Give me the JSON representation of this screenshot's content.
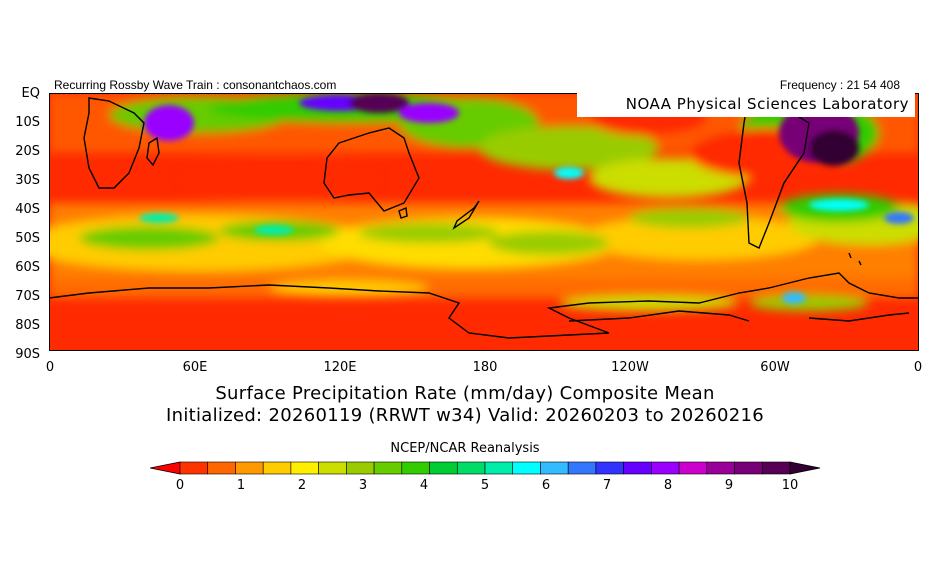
{
  "header": {
    "left_text": "Recurring Rossby Wave Train : consonantchaos.com",
    "right_text": "Frequency : 21 54 408",
    "org_label": "NOAA Physical Sciences Laboratory"
  },
  "map": {
    "projection": "cylindrical",
    "domain": "Southern Hemisphere, EQ to 90S, 0 to 360",
    "lat_labels": [
      "EQ",
      "10S",
      "20S",
      "30S",
      "40S",
      "50S",
      "60S",
      "70S",
      "80S",
      "90S"
    ],
    "lon_labels": [
      "0",
      "60E",
      "120E",
      "180",
      "120W",
      "60W",
      "0"
    ]
  },
  "title": {
    "line1": "Surface Precipitation Rate (mm/day) Composite Mean",
    "line2": "Initialized: 20260119 (RRWT w34) Valid: 20260203 to 20260216"
  },
  "source": "NCEP/NCAR Reanalysis",
  "colorbar": {
    "tick_labels": [
      "0",
      "1",
      "2",
      "3",
      "4",
      "5",
      "6",
      "7",
      "8",
      "9",
      "10"
    ],
    "colors": [
      "#ff0000",
      "#ff3300",
      "#ff6600",
      "#ff9900",
      "#ffcc00",
      "#ffee00",
      "#ccdd00",
      "#99cc00",
      "#66cc00",
      "#33cc00",
      "#00cc33",
      "#00dd66",
      "#00eeaa",
      "#00ffff",
      "#33bbff",
      "#3377ff",
      "#3333ff",
      "#6600ff",
      "#9900ff",
      "#cc00cc",
      "#990099",
      "#770077",
      "#550055",
      "#330033"
    ]
  }
}
